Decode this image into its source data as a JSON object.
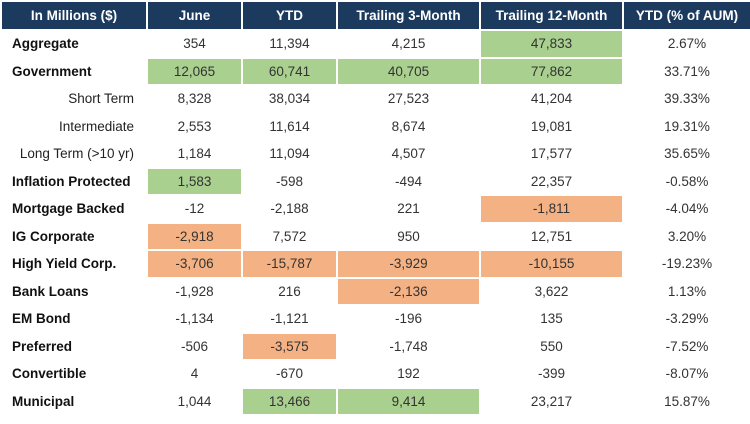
{
  "table": {
    "headers": [
      "In Millions ($)",
      "June",
      "YTD",
      "Trailing 3-Month",
      "Trailing 12-Month",
      "YTD (% of AUM)"
    ],
    "highlight_colors": {
      "positive": "#a9d08e",
      "negative": "#f4b183",
      "header": "#1b3a5e"
    },
    "rows": [
      {
        "label": "Aggregate",
        "indent": false,
        "cells": [
          {
            "v": "354",
            "h": ""
          },
          {
            "v": "11,394",
            "h": ""
          },
          {
            "v": "4,215",
            "h": ""
          },
          {
            "v": "47,833",
            "h": "pos"
          },
          {
            "v": "2.67%",
            "h": ""
          }
        ]
      },
      {
        "label": "Government",
        "indent": false,
        "cells": [
          {
            "v": "12,065",
            "h": "pos"
          },
          {
            "v": "60,741",
            "h": "pos"
          },
          {
            "v": "40,705",
            "h": "pos"
          },
          {
            "v": "77,862",
            "h": "pos"
          },
          {
            "v": "33.71%",
            "h": ""
          }
        ]
      },
      {
        "label": "Short Term",
        "indent": true,
        "cells": [
          {
            "v": "8,328",
            "h": ""
          },
          {
            "v": "38,034",
            "h": ""
          },
          {
            "v": "27,523",
            "h": ""
          },
          {
            "v": "41,204",
            "h": ""
          },
          {
            "v": "39.33%",
            "h": ""
          }
        ]
      },
      {
        "label": "Intermediate",
        "indent": true,
        "cells": [
          {
            "v": "2,553",
            "h": ""
          },
          {
            "v": "11,614",
            "h": ""
          },
          {
            "v": "8,674",
            "h": ""
          },
          {
            "v": "19,081",
            "h": ""
          },
          {
            "v": "19.31%",
            "h": ""
          }
        ]
      },
      {
        "label": "Long Term (>10 yr)",
        "indent": true,
        "cells": [
          {
            "v": "1,184",
            "h": ""
          },
          {
            "v": "11,094",
            "h": ""
          },
          {
            "v": "4,507",
            "h": ""
          },
          {
            "v": "17,577",
            "h": ""
          },
          {
            "v": "35.65%",
            "h": ""
          }
        ]
      },
      {
        "label": "Inflation Protected",
        "indent": false,
        "cells": [
          {
            "v": "1,583",
            "h": "pos"
          },
          {
            "v": "-598",
            "h": ""
          },
          {
            "v": "-494",
            "h": ""
          },
          {
            "v": "22,357",
            "h": ""
          },
          {
            "v": "-0.58%",
            "h": ""
          }
        ]
      },
      {
        "label": "Mortgage Backed",
        "indent": false,
        "cells": [
          {
            "v": "-12",
            "h": ""
          },
          {
            "v": "-2,188",
            "h": ""
          },
          {
            "v": "221",
            "h": ""
          },
          {
            "v": "-1,811",
            "h": "neg"
          },
          {
            "v": "-4.04%",
            "h": ""
          }
        ]
      },
      {
        "label": "IG Corporate",
        "indent": false,
        "cells": [
          {
            "v": "-2,918",
            "h": "neg"
          },
          {
            "v": "7,572",
            "h": ""
          },
          {
            "v": "950",
            "h": ""
          },
          {
            "v": "12,751",
            "h": ""
          },
          {
            "v": "3.20%",
            "h": ""
          }
        ]
      },
      {
        "label": "High Yield Corp.",
        "indent": false,
        "cells": [
          {
            "v": "-3,706",
            "h": "neg"
          },
          {
            "v": "-15,787",
            "h": "neg"
          },
          {
            "v": "-3,929",
            "h": "neg"
          },
          {
            "v": "-10,155",
            "h": "neg"
          },
          {
            "v": "-19.23%",
            "h": ""
          }
        ]
      },
      {
        "label": "Bank Loans",
        "indent": false,
        "cells": [
          {
            "v": "-1,928",
            "h": ""
          },
          {
            "v": "216",
            "h": ""
          },
          {
            "v": "-2,136",
            "h": "neg"
          },
          {
            "v": "3,622",
            "h": ""
          },
          {
            "v": "1.13%",
            "h": ""
          }
        ]
      },
      {
        "label": "EM Bond",
        "indent": false,
        "cells": [
          {
            "v": "-1,134",
            "h": ""
          },
          {
            "v": "-1,121",
            "h": ""
          },
          {
            "v": "-196",
            "h": ""
          },
          {
            "v": "135",
            "h": ""
          },
          {
            "v": "-3.29%",
            "h": ""
          }
        ]
      },
      {
        "label": "Preferred",
        "indent": false,
        "cells": [
          {
            "v": "-506",
            "h": ""
          },
          {
            "v": "-3,575",
            "h": "neg"
          },
          {
            "v": "-1,748",
            "h": ""
          },
          {
            "v": "550",
            "h": ""
          },
          {
            "v": "-7.52%",
            "h": ""
          }
        ]
      },
      {
        "label": "Convertible",
        "indent": false,
        "cells": [
          {
            "v": "4",
            "h": ""
          },
          {
            "v": "-670",
            "h": ""
          },
          {
            "v": "192",
            "h": ""
          },
          {
            "v": "-399",
            "h": ""
          },
          {
            "v": "-8.07%",
            "h": ""
          }
        ]
      },
      {
        "label": "Municipal",
        "indent": false,
        "cells": [
          {
            "v": "1,044",
            "h": ""
          },
          {
            "v": "13,466",
            "h": "pos"
          },
          {
            "v": "9,414",
            "h": "pos"
          },
          {
            "v": "23,217",
            "h": ""
          },
          {
            "v": "15.87%",
            "h": ""
          }
        ]
      }
    ]
  }
}
